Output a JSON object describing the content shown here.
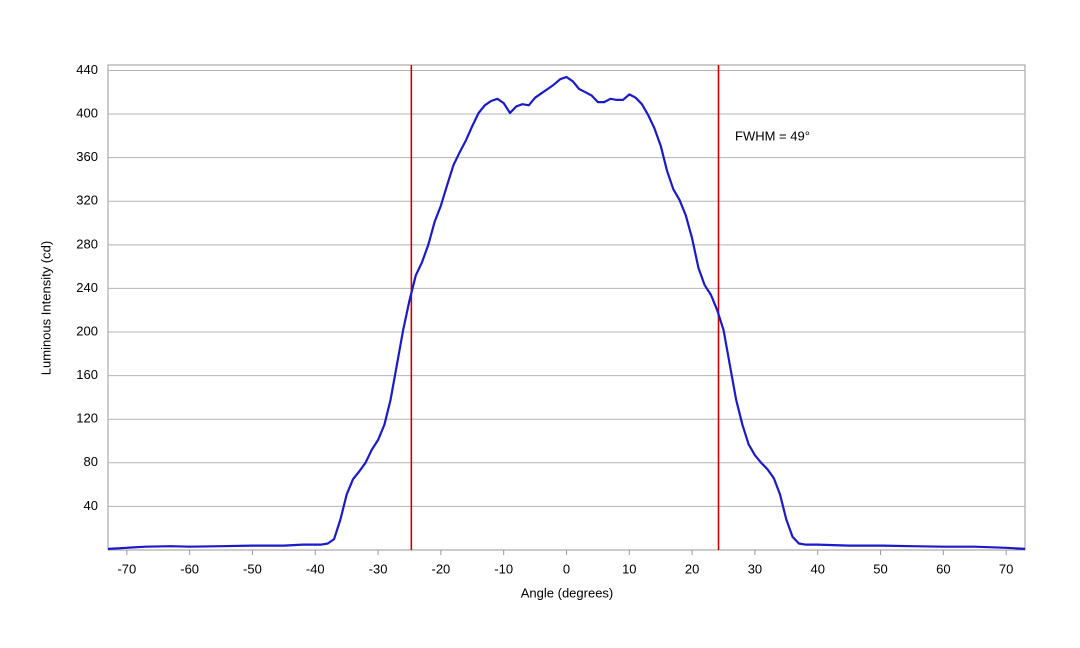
{
  "chart_data": {
    "type": "line",
    "xlabel": "Angle (degrees)",
    "ylabel": "Luminous Intensity (cd)",
    "annotations": [
      "FWHM = 49°"
    ],
    "color": "#1a1acc",
    "x": [
      -73,
      -70,
      -67,
      -63,
      -60,
      -55,
      -50,
      -45,
      -42,
      -40,
      -39,
      -38,
      -37,
      -36,
      -35,
      -34,
      -33,
      -32,
      -31,
      -30,
      -29,
      -28,
      -27,
      -26,
      -25,
      -24,
      -23,
      -22,
      -21,
      -20,
      -19,
      -18,
      -17,
      -16,
      -15,
      -14,
      -13,
      -12,
      -11,
      -10,
      -9,
      -8,
      -7,
      -6,
      -5,
      -4,
      -3,
      -2,
      -1,
      0,
      1,
      2,
      3,
      4,
      5,
      6,
      7,
      8,
      9,
      10,
      11,
      12,
      13,
      14,
      15,
      16,
      17,
      18,
      19,
      20,
      21,
      22,
      23,
      24,
      25,
      26,
      27,
      28,
      29,
      30,
      31,
      32,
      33,
      34,
      35,
      36,
      37,
      38,
      39,
      40,
      45,
      50,
      55,
      60,
      65,
      70,
      73
    ],
    "values": [
      1,
      2,
      3,
      3.5,
      3,
      3.5,
      4,
      4,
      5,
      5,
      5,
      6,
      10,
      28,
      51,
      65,
      72,
      80,
      92,
      101,
      115,
      138,
      170,
      202,
      229,
      252,
      264,
      280,
      301,
      316,
      335,
      353,
      365,
      376,
      389,
      401,
      408,
      412,
      414,
      410,
      401,
      407,
      409,
      408,
      415,
      419,
      423,
      427,
      432,
      434,
      430,
      423,
      420,
      417,
      411,
      411,
      414,
      413,
      413,
      418,
      415,
      409,
      399,
      387,
      371,
      348,
      331,
      321,
      307,
      286,
      259,
      243,
      234,
      220,
      202,
      170,
      138,
      115,
      97,
      87,
      80,
      74,
      66,
      51,
      28,
      12,
      6,
      5,
      5,
      5,
      4,
      4,
      3.5,
      3,
      3,
      2,
      1
    ],
    "vlines": [
      -24.7,
      24.2
    ],
    "vline_color": "#cc0000",
    "xlim": [
      -73,
      73
    ],
    "ylim": [
      0,
      445
    ],
    "xticks": [
      -70,
      -60,
      -50,
      -40,
      -30,
      -20,
      -10,
      0,
      10,
      20,
      30,
      40,
      50,
      60,
      70
    ],
    "yticks": [
      40,
      80,
      120,
      160,
      200,
      240,
      280,
      320,
      360,
      400,
      440
    ],
    "grid": true
  }
}
